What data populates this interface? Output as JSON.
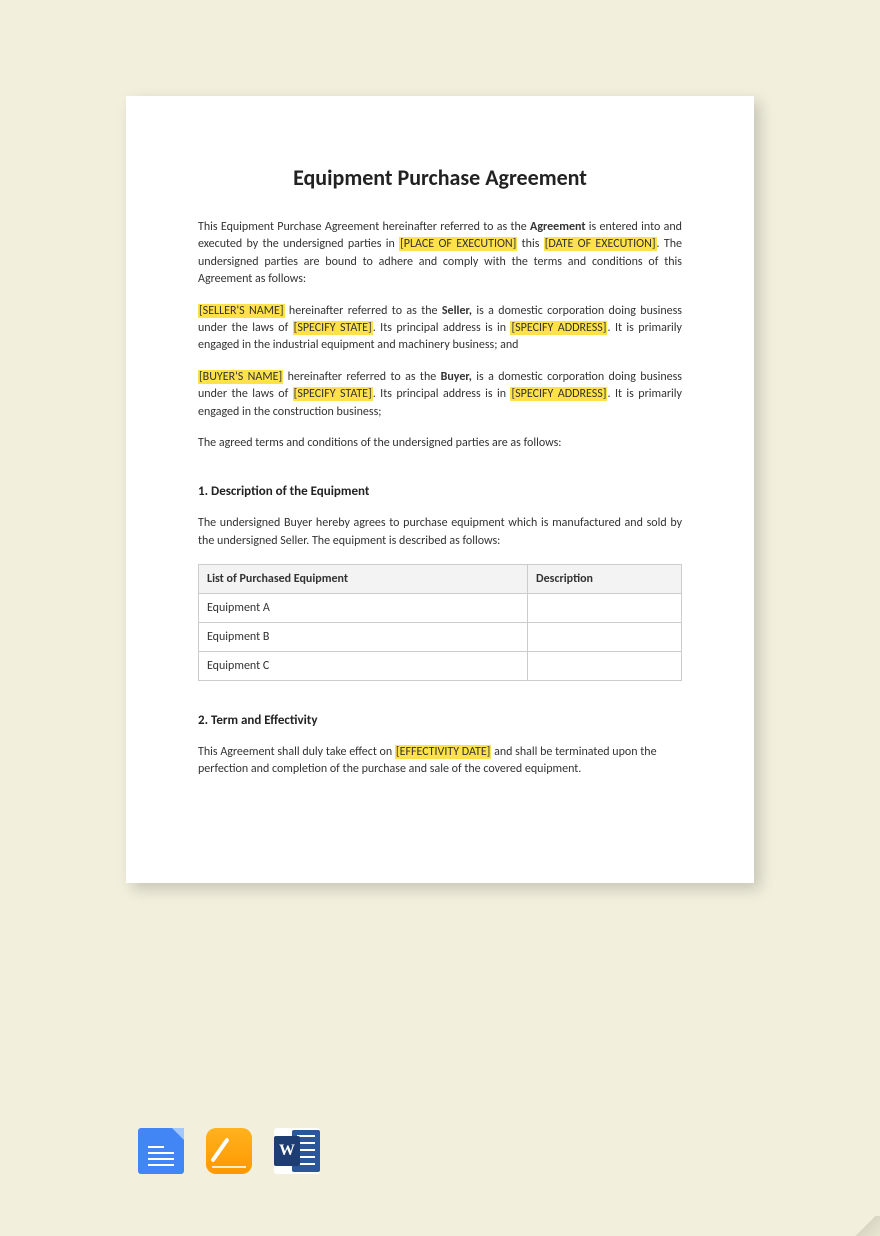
{
  "title": "Equipment Purchase Agreement",
  "intro": {
    "pre_bold": "This Equipment Purchase Agreement hereinafter referred to as the ",
    "agreement_word": "Agreement",
    "post_bold_a": " is entered into and executed by the undersigned parties in ",
    "place_exec": "[PLACE OF EXECUTION]",
    "post_place": " this ",
    "date_exec": "[DATE OF EXECUTION]",
    "post_date": ". The undersigned parties are bound to adhere and comply with the terms and conditions of this Agreement as follows:"
  },
  "seller": {
    "name_ph": "[SELLER'S NAME]",
    "after_name": " hereinafter referred to as the ",
    "role": "Seller,",
    "after_role": " is a domestic corporation doing business under the laws of ",
    "state_ph": "[SPECIFY STATE]",
    "after_state": ". Its principal address is in ",
    "addr_ph": "[SPECIFY ADDRESS]",
    "after_addr": ". It is primarily engaged in the industrial equipment and machinery business; and"
  },
  "buyer": {
    "name_ph": "[BUYER'S NAME]",
    "after_name": " hereinafter referred to as the ",
    "role": "Buyer,",
    "after_role": " is a domestic corporation doing business under the laws of ",
    "state_ph": "[SPECIFY STATE]",
    "after_state": ". Its principal address is in ",
    "addr_ph": "[SPECIFY ADDRESS]",
    "after_addr": ". It is primarily engaged in the construction business;"
  },
  "agreed_line": "The agreed terms and conditions of the undersigned parties are as follows:",
  "section1": {
    "heading": "1. Description of the Equipment",
    "para": "The undersigned Buyer hereby agrees to purchase equipment which is manufactured and sold by the undersigned Seller. The equipment is described as follows:",
    "table": {
      "col1": "List of Purchased Equipment",
      "col2": "Description",
      "rows": [
        "Equipment A",
        "Equipment B",
        "Equipment C"
      ]
    }
  },
  "section2": {
    "heading": "2. Term and Effectivity",
    "pre": "This Agreement shall duly take effect on ",
    "date_ph": "[EFFECTIVITY DATE]",
    "post": " and shall be terminated upon the perfection and completion of the purchase and sale of the covered equipment."
  },
  "icons": {
    "gdocs": "google-docs",
    "pages": "apple-pages",
    "word": "microsoft-word"
  }
}
